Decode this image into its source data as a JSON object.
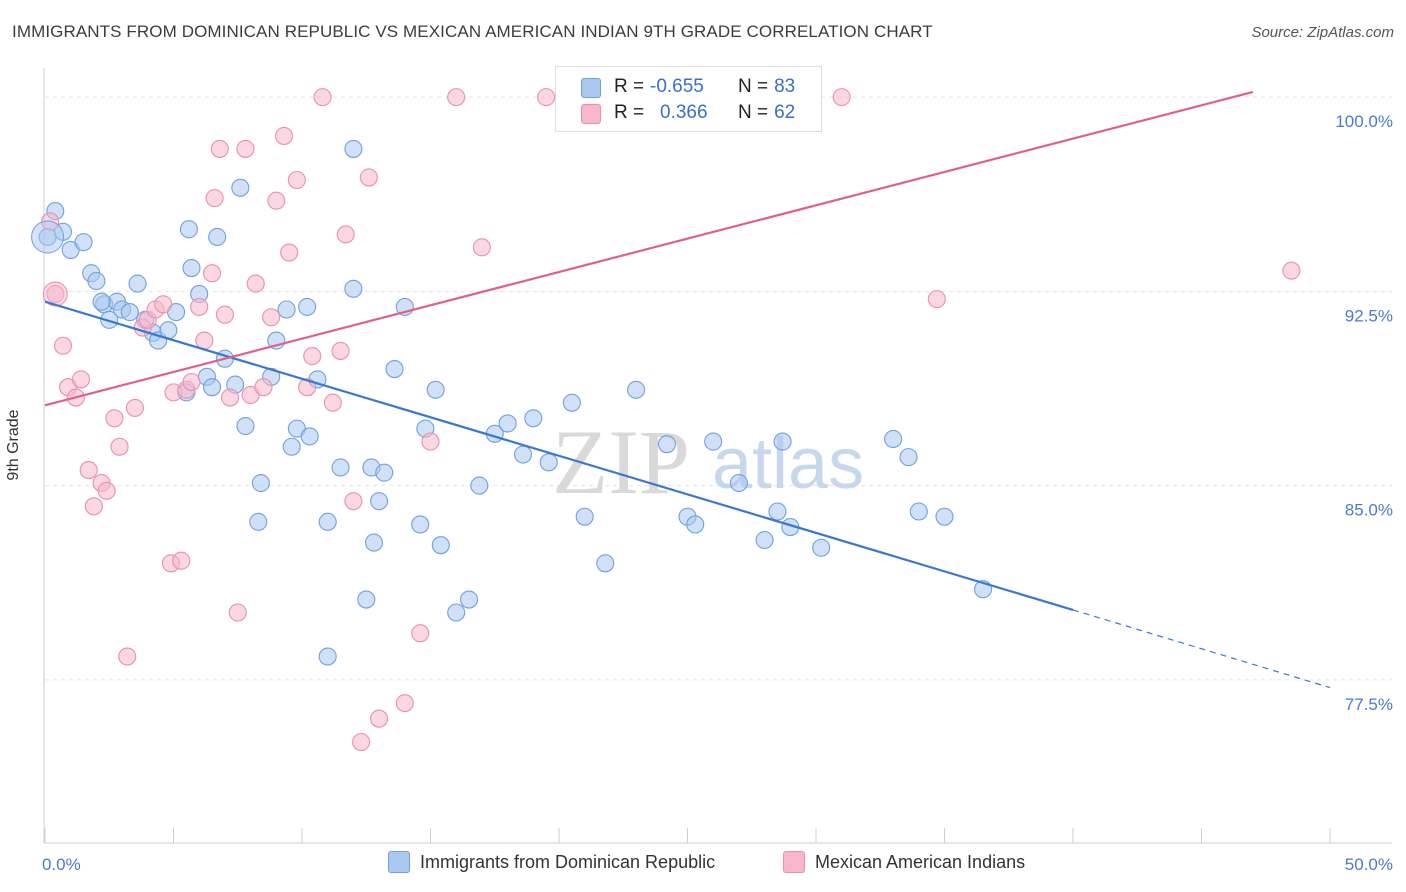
{
  "title": "IMMIGRANTS FROM DOMINICAN REPUBLIC VS MEXICAN AMERICAN INDIAN 9TH GRADE CORRELATION CHART",
  "source": "Source: ZipAtlas.com",
  "watermark": {
    "zip": "ZIP",
    "atlas": "atlas"
  },
  "legend_top": {
    "rows": [
      {
        "r_label": "R =",
        "r_value": "-0.655",
        "n_label": "N =",
        "n_value": "83",
        "color": "#aac8f0"
      },
      {
        "r_label": "R =",
        "r_value": "0.366",
        "n_label": "N =",
        "n_value": "62",
        "color": "#f7b6cb"
      }
    ]
  },
  "legend_bottom": {
    "items": [
      {
        "label": "Immigrants from Dominican Republic",
        "color": "#aac8f0"
      },
      {
        "label": "Mexican American Indians",
        "color": "#f7b6cb"
      }
    ]
  },
  "chart_data": {
    "type": "scatter",
    "title": "IMMIGRANTS FROM DOMINICAN REPUBLIC VS MEXICAN AMERICAN INDIAN 9TH GRADE CORRELATION CHART",
    "xlabel": "",
    "ylabel": "9th Grade",
    "xlim": [
      0,
      50
    ],
    "ylim": [
      71.2,
      100.7
    ],
    "x_tick_labels": [
      "0.0%",
      "50.0%"
    ],
    "y_ticks": [
      77.5,
      85.0,
      92.5,
      100.0
    ],
    "y_tick_labels": [
      "77.5%",
      "85.0%",
      "92.5%",
      "100.0%"
    ],
    "grid": true,
    "legend_position": "top-center",
    "series": [
      {
        "name": "Immigrants from Dominican Republic",
        "color": "#6fa0e0",
        "fill": "#aac8f0",
        "trend": {
          "x0": 0,
          "y0": 92.1,
          "x1": 40,
          "y1": 80.2,
          "dash_to_x": 50,
          "dash_to_y": 77.2,
          "color": "#3a78d0"
        },
        "points": [
          [
            0.1,
            94.6
          ],
          [
            0.4,
            95.6
          ],
          [
            0.7,
            94.8
          ],
          [
            1.0,
            94.1
          ],
          [
            1.5,
            94.4
          ],
          [
            1.8,
            93.2
          ],
          [
            2.0,
            92.9
          ],
          [
            2.3,
            92.0
          ],
          [
            2.5,
            91.4
          ],
          [
            2.8,
            92.1
          ],
          [
            3.0,
            91.8
          ],
          [
            3.3,
            91.7
          ],
          [
            3.6,
            92.8
          ],
          [
            3.9,
            91.4
          ],
          [
            4.2,
            90.9
          ],
          [
            4.4,
            90.6
          ],
          [
            4.8,
            91.0
          ],
          [
            5.1,
            91.7
          ],
          [
            5.5,
            88.6
          ],
          [
            5.6,
            94.9
          ],
          [
            5.7,
            93.4
          ],
          [
            6.0,
            92.4
          ],
          [
            6.3,
            89.2
          ],
          [
            6.5,
            88.8
          ],
          [
            6.7,
            94.6
          ],
          [
            7.0,
            89.9
          ],
          [
            7.4,
            88.9
          ],
          [
            7.6,
            96.5
          ],
          [
            7.8,
            87.3
          ],
          [
            8.3,
            83.6
          ],
          [
            8.4,
            85.1
          ],
          [
            8.8,
            89.2
          ],
          [
            9.0,
            90.6
          ],
          [
            9.4,
            91.8
          ],
          [
            9.6,
            86.5
          ],
          [
            9.8,
            87.2
          ],
          [
            10.2,
            91.9
          ],
          [
            10.3,
            86.9
          ],
          [
            10.6,
            89.1
          ],
          [
            11.0,
            83.6
          ],
          [
            11.5,
            85.7
          ],
          [
            12.0,
            92.6
          ],
          [
            12.0,
            98.0
          ],
          [
            12.5,
            80.6
          ],
          [
            12.7,
            85.7
          ],
          [
            12.8,
            82.8
          ],
          [
            13.0,
            84.4
          ],
          [
            13.2,
            85.5
          ],
          [
            13.6,
            89.5
          ],
          [
            14.0,
            91.9
          ],
          [
            14.6,
            83.5
          ],
          [
            14.8,
            87.2
          ],
          [
            15.2,
            88.7
          ],
          [
            15.4,
            82.7
          ],
          [
            16.0,
            80.1
          ],
          [
            16.5,
            80.6
          ],
          [
            16.9,
            85.0
          ],
          [
            17.5,
            87.0
          ],
          [
            18.0,
            87.4
          ],
          [
            18.6,
            86.2
          ],
          [
            19.0,
            87.6
          ],
          [
            19.6,
            85.9
          ],
          [
            20.5,
            88.2
          ],
          [
            21.0,
            83.8
          ],
          [
            21.8,
            82.0
          ],
          [
            23.0,
            88.7
          ],
          [
            24.2,
            86.6
          ],
          [
            25.0,
            83.8
          ],
          [
            25.3,
            83.5
          ],
          [
            26.0,
            86.7
          ],
          [
            27.0,
            85.1
          ],
          [
            28.0,
            82.9
          ],
          [
            28.5,
            84.0
          ],
          [
            28.7,
            86.7
          ],
          [
            29.0,
            83.4
          ],
          [
            30.2,
            82.6
          ],
          [
            33.0,
            86.8
          ],
          [
            33.6,
            86.1
          ],
          [
            34.0,
            84.0
          ],
          [
            35.0,
            83.8
          ],
          [
            36.5,
            81.0
          ],
          [
            11.0,
            78.4
          ],
          [
            2.2,
            92.1
          ]
        ]
      },
      {
        "name": "Mexican American Indians",
        "color": "#e890ad",
        "fill": "#f7b6cb",
        "trend": {
          "x0": 0,
          "y0": 88.1,
          "x1": 47,
          "y1": 100.2,
          "color": "#e0608a"
        },
        "points": [
          [
            0.2,
            95.2
          ],
          [
            0.4,
            92.4
          ],
          [
            0.7,
            90.4
          ],
          [
            0.9,
            88.8
          ],
          [
            1.2,
            88.4
          ],
          [
            1.4,
            89.1
          ],
          [
            1.7,
            85.6
          ],
          [
            1.9,
            84.2
          ],
          [
            2.2,
            85.1
          ],
          [
            2.4,
            84.8
          ],
          [
            2.7,
            87.6
          ],
          [
            2.9,
            86.5
          ],
          [
            3.2,
            78.4
          ],
          [
            3.5,
            88.0
          ],
          [
            3.8,
            91.1
          ],
          [
            4.0,
            91.4
          ],
          [
            4.3,
            91.8
          ],
          [
            4.6,
            92.0
          ],
          [
            4.9,
            82.0
          ],
          [
            5.0,
            88.6
          ],
          [
            5.3,
            82.1
          ],
          [
            5.5,
            88.7
          ],
          [
            5.7,
            89.0
          ],
          [
            6.0,
            91.9
          ],
          [
            6.2,
            90.6
          ],
          [
            6.5,
            93.2
          ],
          [
            6.6,
            96.1
          ],
          [
            6.8,
            98.0
          ],
          [
            7.0,
            91.6
          ],
          [
            7.2,
            88.4
          ],
          [
            7.5,
            80.1
          ],
          [
            7.8,
            98.0
          ],
          [
            8.0,
            88.5
          ],
          [
            8.2,
            92.8
          ],
          [
            8.5,
            88.8
          ],
          [
            8.8,
            91.5
          ],
          [
            9.0,
            96.0
          ],
          [
            9.3,
            98.5
          ],
          [
            9.5,
            94.0
          ],
          [
            9.8,
            96.8
          ],
          [
            10.2,
            88.8
          ],
          [
            10.4,
            90.0
          ],
          [
            10.8,
            100.0
          ],
          [
            11.2,
            88.2
          ],
          [
            11.5,
            90.2
          ],
          [
            11.7,
            94.7
          ],
          [
            12.0,
            84.4
          ],
          [
            12.3,
            75.1
          ],
          [
            12.6,
            96.9
          ],
          [
            13.0,
            76.0
          ],
          [
            14.0,
            76.6
          ],
          [
            14.6,
            79.3
          ],
          [
            15.0,
            86.7
          ],
          [
            16.0,
            100.0
          ],
          [
            17.0,
            94.2
          ],
          [
            19.5,
            100.0
          ],
          [
            21.0,
            100.0
          ],
          [
            31.0,
            100.0
          ],
          [
            34.7,
            92.2
          ],
          [
            48.5,
            93.3
          ],
          [
            28.5,
            100.0
          ],
          [
            22.0,
            100.0
          ]
        ]
      }
    ]
  }
}
